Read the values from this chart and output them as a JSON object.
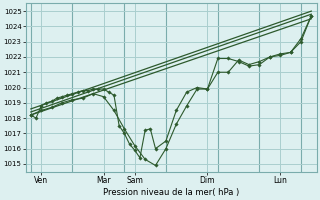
{
  "xlabel": "Pression niveau de la mer( hPa )",
  "background_color": "#ddf0f0",
  "grid_color": "#aacece",
  "line_color": "#2d5a2d",
  "ylim": [
    1014.5,
    1025.5
  ],
  "yticks": [
    1015,
    1016,
    1017,
    1018,
    1019,
    1020,
    1021,
    1022,
    1023,
    1024,
    1025
  ],
  "day_labels": [
    "Ven",
    "",
    "Mar",
    "Sam",
    "",
    "Dim",
    "",
    "Lun"
  ],
  "vline_positions": [
    0,
    4,
    9,
    13,
    18,
    22,
    26
  ],
  "tick_label_positions": [
    1,
    7,
    10,
    17,
    24
  ],
  "tick_labels": [
    "Ven",
    "Mar",
    "Sam",
    "Dim",
    "Lun"
  ],
  "xlim": [
    -0.5,
    27.5
  ],
  "series": [
    {
      "x": [
        0,
        0.5,
        1,
        1.5,
        2,
        2.5,
        3,
        3.5,
        4,
        4.5,
        5,
        5.5,
        6,
        6.5,
        7,
        7.5,
        8,
        8.5,
        9,
        9.5,
        10,
        10.5,
        11,
        11.5,
        12,
        13,
        14,
        15,
        16,
        17,
        18,
        19,
        20,
        21,
        22,
        23,
        24,
        25,
        26,
        27
      ],
      "y": [
        1018.2,
        1018.0,
        1018.8,
        1019.0,
        1019.1,
        1019.3,
        1019.4,
        1019.5,
        1019.6,
        1019.7,
        1019.8,
        1019.8,
        1019.9,
        1019.9,
        1019.9,
        1019.7,
        1019.5,
        1017.5,
        1017.0,
        1016.3,
        1015.9,
        1015.4,
        1017.2,
        1017.3,
        1016.0,
        1016.5,
        1018.5,
        1019.7,
        1020.0,
        1019.9,
        1021.9,
        1021.9,
        1021.7,
        1021.4,
        1021.5,
        1022.0,
        1022.1,
        1022.3,
        1023.0,
        1024.7
      ],
      "marker": true
    },
    {
      "x": [
        0,
        1,
        2,
        3,
        4,
        5,
        6,
        7,
        8,
        9,
        10,
        11,
        12,
        13,
        14,
        15,
        16,
        17,
        18,
        19,
        20,
        21,
        22,
        23,
        24,
        25,
        26,
        27
      ],
      "y": [
        1018.2,
        1018.5,
        1018.7,
        1019.0,
        1019.2,
        1019.3,
        1019.6,
        1019.4,
        1018.5,
        1017.3,
        1016.2,
        1015.3,
        1014.9,
        1016.0,
        1017.6,
        1018.8,
        1019.9,
        1019.9,
        1021.0,
        1021.0,
        1021.8,
        1021.5,
        1021.7,
        1022.0,
        1022.2,
        1022.3,
        1023.2,
        1024.7
      ],
      "marker": true
    },
    {
      "x": [
        0,
        27
      ],
      "y": [
        1018.2,
        1024.5
      ],
      "marker": false
    },
    {
      "x": [
        0,
        27
      ],
      "y": [
        1018.4,
        1024.8
      ],
      "marker": false
    },
    {
      "x": [
        0,
        27
      ],
      "y": [
        1018.6,
        1025.0
      ],
      "marker": false
    }
  ]
}
